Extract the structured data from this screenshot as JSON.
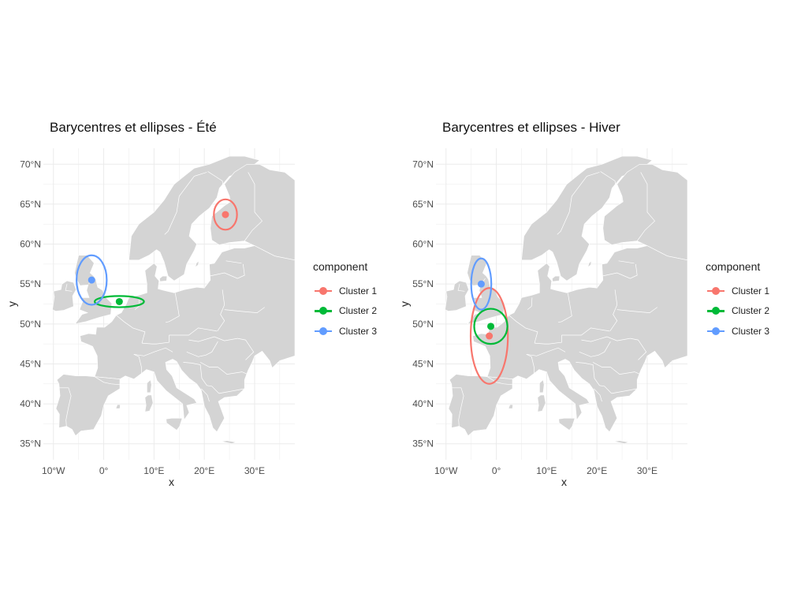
{
  "panels": [
    {
      "title": "Barycentres et ellipses - Été",
      "x_label": "x",
      "y_label": "y",
      "x_ticks": [
        "10°W",
        "0°",
        "10°E",
        "20°E",
        "30°E"
      ],
      "y_ticks": [
        "35°N",
        "40°N",
        "45°N",
        "50°N",
        "55°N",
        "60°N",
        "65°N",
        "70°N"
      ],
      "legend_title": "component",
      "clusters": [
        {
          "name": "Cluster 1",
          "color": "#F8766D",
          "lon": 24.2,
          "lat": 63.7,
          "semi_lon": 2.3,
          "semi_lat": 1.9
        },
        {
          "name": "Cluster 2",
          "color": "#00BA38",
          "lon": 3.1,
          "lat": 52.8,
          "semi_lon": 4.9,
          "semi_lat": 0.7
        },
        {
          "name": "Cluster 3",
          "color": "#619CFF",
          "lon": -2.4,
          "lat": 55.5,
          "semi_lon": 3.0,
          "semi_lat": 3.1
        }
      ]
    },
    {
      "title": "Barycentres et ellipses - Hiver",
      "x_label": "x",
      "y_label": "y",
      "x_ticks": [
        "10°W",
        "0°",
        "10°E",
        "20°E",
        "30°E"
      ],
      "y_ticks": [
        "35°N",
        "40°N",
        "45°N",
        "50°N",
        "55°N",
        "60°N",
        "65°N",
        "70°N"
      ],
      "legend_title": "component",
      "clusters": [
        {
          "name": "Cluster 1",
          "color": "#F8766D",
          "lon": -1.4,
          "lat": 48.5,
          "semi_lon": 3.7,
          "semi_lat": 6.0
        },
        {
          "name": "Cluster 2",
          "color": "#00BA38",
          "lon": -1.1,
          "lat": 49.7,
          "semi_lon": 3.3,
          "semi_lat": 2.2
        },
        {
          "name": "Cluster 3",
          "color": "#619CFF",
          "lon": -3.0,
          "lat": 55.0,
          "semi_lon": 2.0,
          "semi_lat": 3.2
        }
      ]
    }
  ],
  "map": {
    "x_range": [
      -12,
      38
    ],
    "y_range": [
      33,
      72
    ],
    "land_color": "#d4d4d4",
    "grid_color": "#ebebeb",
    "border_color": "#ffffff"
  }
}
